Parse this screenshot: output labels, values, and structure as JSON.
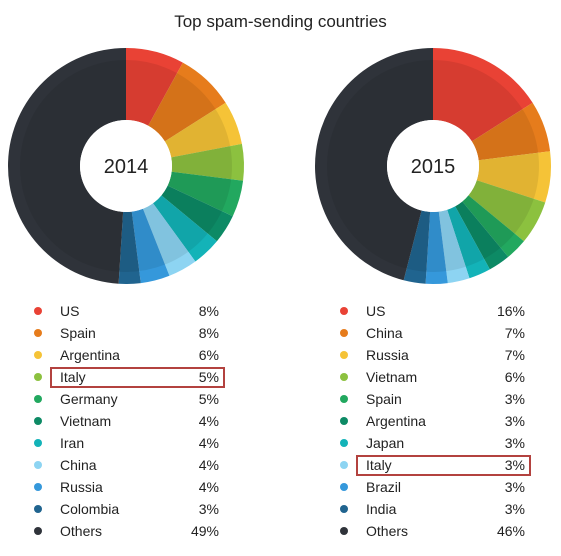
{
  "title": "Top spam-sending countries",
  "chart_data": [
    {
      "type": "pie",
      "center_label": "2014",
      "highlighted": "Italy",
      "slices": [
        {
          "name": "US",
          "label": "8%",
          "value": 8,
          "color": "#e94235"
        },
        {
          "name": "Spain",
          "label": "8%",
          "value": 8,
          "color": "#e67c1c"
        },
        {
          "name": "Argentina",
          "label": "6%",
          "value": 6,
          "color": "#f5c337"
        },
        {
          "name": "Italy",
          "label": "5%",
          "value": 5,
          "color": "#8cc13f"
        },
        {
          "name": "Germany",
          "label": "5%",
          "value": 5,
          "color": "#22a85f"
        },
        {
          "name": "Vietnam",
          "label": "4%",
          "value": 4,
          "color": "#0d8a65"
        },
        {
          "name": "Iran",
          "label": "4%",
          "value": 4,
          "color": "#13b3b8"
        },
        {
          "name": "China",
          "label": "4%",
          "value": 4,
          "color": "#8dd4f2"
        },
        {
          "name": "Russia",
          "label": "4%",
          "value": 4,
          "color": "#3598db"
        },
        {
          "name": "Colombia",
          "label": "3%",
          "value": 3,
          "color": "#20648f"
        },
        {
          "name": "Others",
          "label": "49%",
          "value": 49,
          "color": "#2f333a"
        }
      ]
    },
    {
      "type": "pie",
      "center_label": "2015",
      "highlighted": "Italy",
      "slices": [
        {
          "name": "US",
          "label": "16%",
          "value": 16,
          "color": "#e94235"
        },
        {
          "name": "China",
          "label": "7%",
          "value": 7,
          "color": "#e67c1c"
        },
        {
          "name": "Russia",
          "label": "7%",
          "value": 7,
          "color": "#f5c337"
        },
        {
          "name": "Vietnam",
          "label": "6%",
          "value": 6,
          "color": "#8cc13f"
        },
        {
          "name": "Spain",
          "label": "3%",
          "value": 3,
          "color": "#22a85f"
        },
        {
          "name": "Argentina",
          "label": "3%",
          "value": 3,
          "color": "#0d8a65"
        },
        {
          "name": "Japan",
          "label": "3%",
          "value": 3,
          "color": "#13b3b8"
        },
        {
          "name": "Italy",
          "label": "3%",
          "value": 3,
          "color": "#8dd4f2"
        },
        {
          "name": "Brazil",
          "label": "3%",
          "value": 3,
          "color": "#3598db"
        },
        {
          "name": "India",
          "label": "3%",
          "value": 3,
          "color": "#20648f"
        },
        {
          "name": "Others",
          "label": "46%",
          "value": 46,
          "color": "#2f333a"
        }
      ]
    }
  ]
}
